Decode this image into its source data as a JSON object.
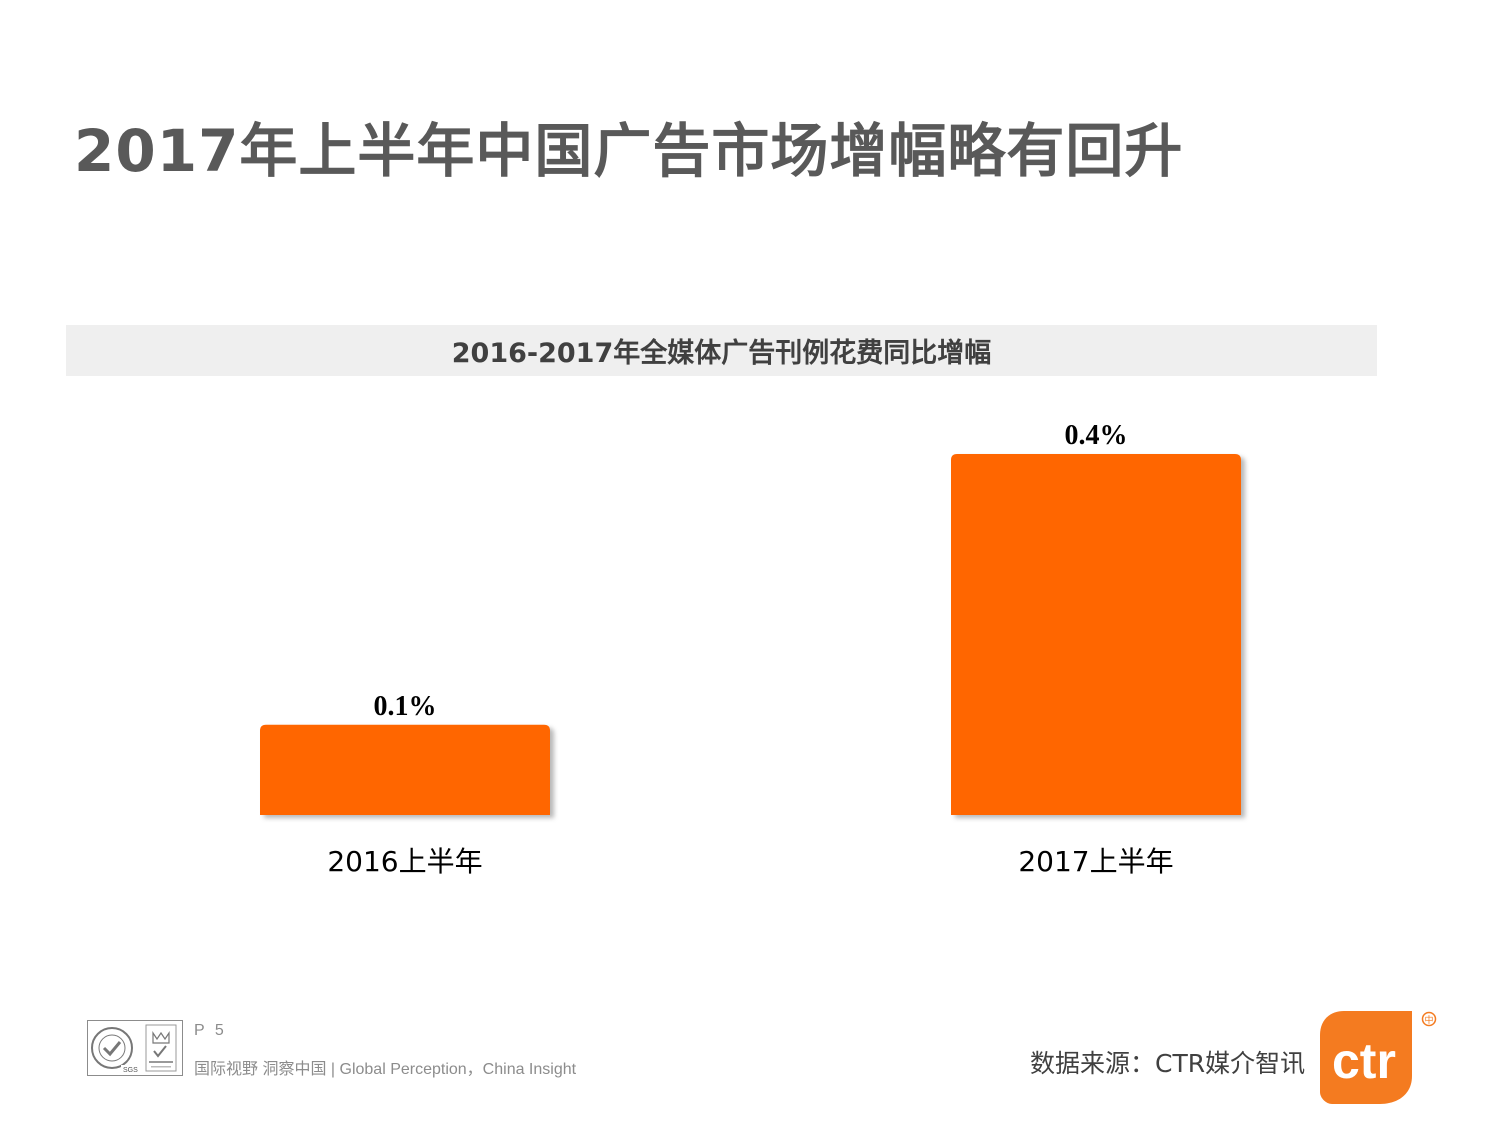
{
  "page": {
    "title": "2017年上半年中国广告市场增幅略有回升"
  },
  "chart_data": {
    "type": "bar",
    "title": "2016-2017年全媒体广告刊例花费同比增幅",
    "categories": [
      "2016上半年",
      "2017上半年"
    ],
    "values": [
      0.1,
      0.4
    ],
    "value_labels": [
      "0.1%",
      "0.4%"
    ],
    "xlabel": "",
    "ylabel": "",
    "ylim": [
      0,
      0.4
    ],
    "grid": false,
    "legend": "none",
    "bar_color": "#ff6600"
  },
  "footer": {
    "page_number": "P 5",
    "slogan": "国际视野  洞察中国 |  Global Perception，China Insight",
    "source": "数据来源：CTR媒介智讯",
    "logo_text": "ctr",
    "logo_mark": "中",
    "accent_color": "#f47b20"
  }
}
